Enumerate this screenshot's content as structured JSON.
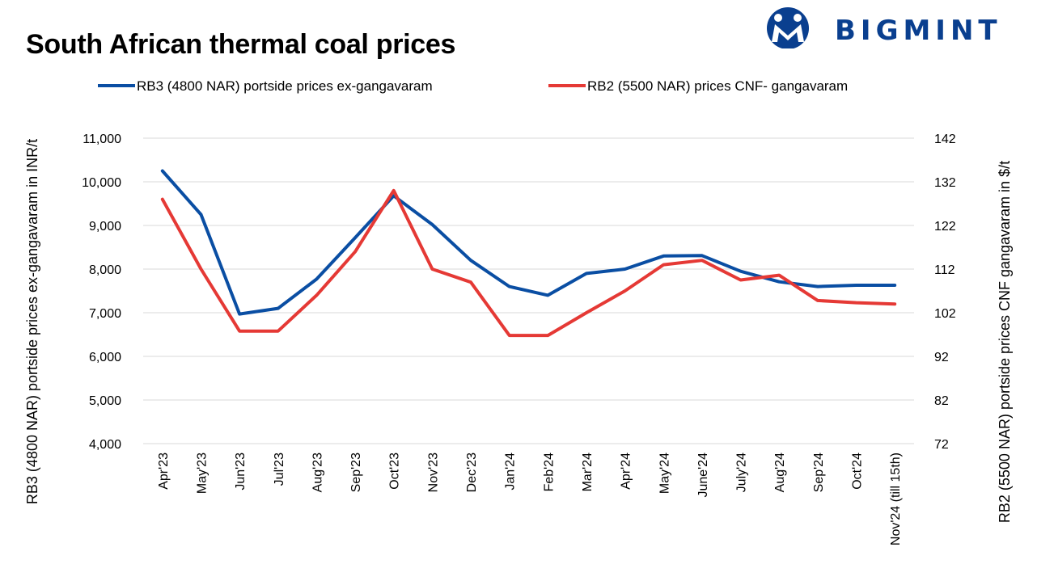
{
  "header": {
    "title": "South African thermal coal prices",
    "logo_text": "BIGMINT"
  },
  "colors": {
    "rb3": "#0a4ea3",
    "rb2": "#e53935",
    "grid": "#d9d9d9",
    "logo": "#0a3f8f"
  },
  "chart_data": {
    "type": "line",
    "title": "South African thermal coal prices",
    "categories": [
      "Apr'23",
      "May'23",
      "Jun'23",
      "Jul'23",
      "Aug'23",
      "Sep'23",
      "Oct'23",
      "Nov'23",
      "Dec'23",
      "Jan'24",
      "Feb'24",
      "Mar'24",
      "Apr'24",
      "May'24",
      "June'24",
      "July'24",
      "Aug'24",
      "Sep'24",
      "Oct'24",
      "Nov'24 (till 15th)"
    ],
    "y_left": {
      "label": "RB3 (4800 NAR) portside prices ex-gangavaram  in INR/t",
      "min": 4000,
      "max": 11000,
      "ticks": [
        "4,000",
        "5,000",
        "6,000",
        "7,000",
        "8,000",
        "9,000",
        "10,000",
        "11,000"
      ]
    },
    "y_right": {
      "label": "RB2 (5500 NAR) portside prices CNF  gangavaram  in $/t",
      "min": 72,
      "max": 142,
      "ticks": [
        "72",
        "82",
        "92",
        "102",
        "112",
        "122",
        "132",
        "142"
      ]
    },
    "series": [
      {
        "name": "RB3 (4800 NAR) portside prices ex-gangavaram",
        "axis": "left",
        "color": "#0a4ea3",
        "values": [
          10250,
          9250,
          6970,
          7100,
          7770,
          8720,
          9680,
          9020,
          8200,
          7600,
          7400,
          7900,
          8000,
          8300,
          8310,
          7950,
          7710,
          7600,
          7630,
          7630
        ]
      },
      {
        "name": "RB2 (5500 NAR) prices CNF- gangavaram",
        "axis": "right",
        "color": "#e53935",
        "values": [
          128,
          112,
          97.8,
          97.8,
          106,
          116,
          130,
          112,
          109,
          96.8,
          96.8,
          102,
          107,
          113,
          114,
          109.5,
          110.6,
          104.8,
          104.3,
          104
        ]
      }
    ],
    "legend": "top",
    "grid": true
  }
}
